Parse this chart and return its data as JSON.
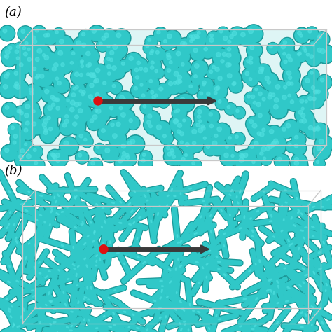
{
  "bg_color": "#ffffff",
  "label_a": "(a)",
  "label_b": "(b)",
  "label_fontsize": 13,
  "teal_main": "#30C8C8",
  "teal_dark": "#1A9999",
  "teal_light": "#50E0E0",
  "teal_fill": "#28C0C0",
  "box_edge_color": "#c8c8c8",
  "arrow_color": "#3a3a3a",
  "red_color": "#dd1111",
  "sphere_seed_a": 7,
  "rod_seed_b": 13,
  "n_spheres": 420,
  "n_rods": 280
}
